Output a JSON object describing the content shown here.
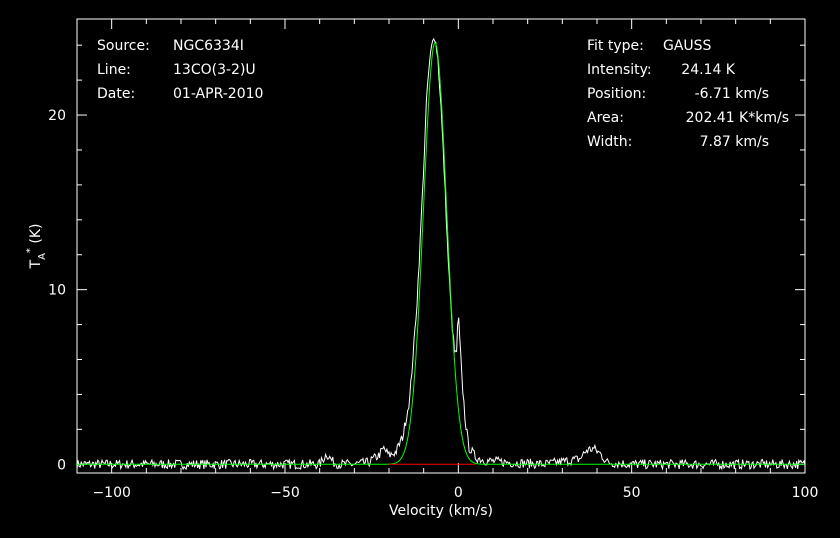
{
  "header_left": [
    {
      "key": "Source:",
      "value": "NGC6334I"
    },
    {
      "key": "Line:",
      "value": "13CO(3-2)U"
    },
    {
      "key": "Date:",
      "value": "01-APR-2010"
    }
  ],
  "header_right": [
    {
      "key": "Fit type:",
      "value": "GAUSS"
    },
    {
      "key": "Intensity:",
      "value": "24.14 K"
    },
    {
      "key": "Position:",
      "value": "-6.71 km/s"
    },
    {
      "key": "Area:",
      "value": "202.41 K*km/s"
    },
    {
      "key": "Width:",
      "value": "7.87 km/s"
    }
  ],
  "chart_data": {
    "type": "line",
    "xlabel": "Velocity (km/s)",
    "ylabel": "T_A^* (K)",
    "xlim": [
      -110,
      100
    ],
    "ylim": [
      -0.5,
      25.5
    ],
    "xticks": [
      -100,
      -50,
      0,
      50,
      100
    ],
    "xtick_labels": [
      "−100",
      "−50",
      "0",
      "50",
      "100"
    ],
    "yticks": [
      0,
      10,
      20
    ],
    "ytick_labels": [
      "0",
      "10",
      "20"
    ],
    "grid": false,
    "colors": {
      "data": "#ffffff",
      "fit": "#00ff00",
      "baseline": "#ff0000",
      "frame": "#ffffff"
    },
    "series": [
      {
        "role": "data",
        "x": [
          -110,
          -100,
          -80,
          -60,
          -40,
          -38,
          -36,
          -34,
          -30,
          -26,
          -23,
          -21.5,
          -20,
          -18,
          -16,
          -14,
          -12,
          -11,
          -10,
          -9,
          -8,
          -7,
          -6,
          -5,
          -4,
          -3,
          -2,
          -1,
          -0.5,
          0,
          1,
          2,
          3,
          5,
          8,
          15,
          25,
          35,
          37,
          39,
          41,
          43,
          50,
          60,
          70,
          80,
          90,
          100
        ],
        "y": [
          0,
          0,
          0,
          0,
          0,
          0.6,
          0.1,
          0,
          0,
          0.1,
          0.5,
          0.9,
          0.5,
          0.7,
          1.6,
          3.8,
          9.0,
          12.8,
          17.0,
          21.5,
          23.5,
          24.7,
          23.5,
          20.5,
          16.5,
          12.0,
          8.5,
          6.2,
          6.5,
          8.6,
          5.0,
          2.5,
          1.0,
          0.4,
          0.2,
          0.1,
          0,
          0.3,
          0.8,
          0.9,
          0.6,
          0.1,
          0,
          0,
          0,
          0,
          0,
          0
        ]
      },
      {
        "role": "fit",
        "gauss": {
          "amplitude": 24.14,
          "center": -6.71,
          "fwhm": 7.87
        }
      },
      {
        "role": "baseline",
        "x": [
          -20,
          5
        ],
        "y": [
          0,
          0
        ]
      }
    ]
  }
}
